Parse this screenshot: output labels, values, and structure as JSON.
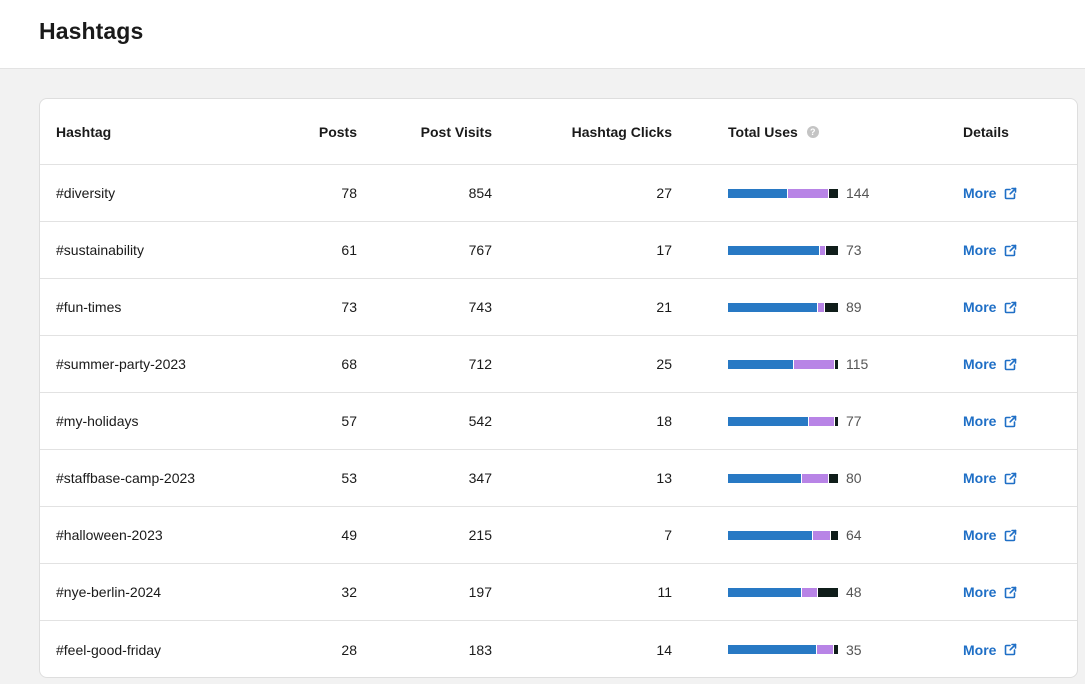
{
  "page": {
    "title": "Hashtags"
  },
  "colors": {
    "bar_primary": "#2879c4",
    "bar_secondary": "#b884e6",
    "bar_tertiary": "#0f1d1a",
    "link": "#1f6fc6"
  },
  "table": {
    "columns": {
      "hashtag": "Hashtag",
      "posts": "Posts",
      "post_visits": "Post Visits",
      "hashtag_clicks": "Hashtag Clicks",
      "total_uses": "Total Uses",
      "details": "Details"
    },
    "help_icon": "?",
    "rows": [
      {
        "hashtag": "#diversity",
        "posts": "78",
        "post_visits": "854",
        "hashtag_clicks": "27",
        "total_uses": "144",
        "split": [
          0.54,
          0.37,
          0.09
        ],
        "link": "More"
      },
      {
        "hashtag": "#sustainability",
        "posts": "61",
        "post_visits": "767",
        "hashtag_clicks": "17",
        "total_uses": "73",
        "split": [
          0.83,
          0.05,
          0.12
        ],
        "link": "More"
      },
      {
        "hashtag": "#fun-times",
        "posts": "73",
        "post_visits": "743",
        "hashtag_clicks": "21",
        "total_uses": "89",
        "split": [
          0.81,
          0.06,
          0.13
        ],
        "link": "More"
      },
      {
        "hashtag": "#summer-party-2023",
        "posts": "68",
        "post_visits": "712",
        "hashtag_clicks": "25",
        "total_uses": "115",
        "split": [
          0.59,
          0.37,
          0.04
        ],
        "link": "More"
      },
      {
        "hashtag": "#my-holidays",
        "posts": "57",
        "post_visits": "542",
        "hashtag_clicks": "18",
        "total_uses": "77",
        "split": [
          0.73,
          0.23,
          0.04
        ],
        "link": "More"
      },
      {
        "hashtag": "#staffbase-camp-2023",
        "posts": "53",
        "post_visits": "347",
        "hashtag_clicks": "13",
        "total_uses": "80",
        "split": [
          0.66,
          0.25,
          0.09
        ],
        "link": "More"
      },
      {
        "hashtag": "#halloween-2023",
        "posts": "49",
        "post_visits": "215",
        "hashtag_clicks": "7",
        "total_uses": "64",
        "split": [
          0.76,
          0.17,
          0.07
        ],
        "link": "More"
      },
      {
        "hashtag": "#nye-berlin-2024",
        "posts": "32",
        "post_visits": "197",
        "hashtag_clicks": "11",
        "total_uses": "48",
        "split": [
          0.66,
          0.15,
          0.19
        ],
        "link": "More"
      },
      {
        "hashtag": "#feel-good-friday",
        "posts": "28",
        "post_visits": "183",
        "hashtag_clicks": "14",
        "total_uses": "35",
        "split": [
          0.8,
          0.15,
          0.05
        ],
        "link": "More"
      }
    ]
  }
}
